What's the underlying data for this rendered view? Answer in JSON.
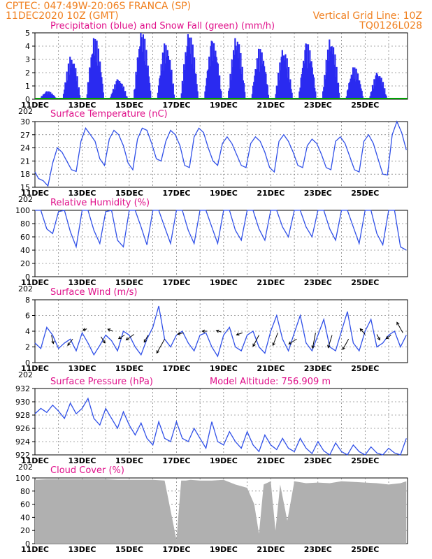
{
  "header": {
    "line1": "CPTEC:   047:49W-20:06S  FRANCA (SP)",
    "line2": "11DEC2020 10Z (GMT)",
    "grid_note": "Vertical Grid Line: 10Z",
    "run_code": "TQ0126L028"
  },
  "colors": {
    "header": "#f08020",
    "title": "#e0108a",
    "precip": "#2a2af0",
    "snow": "#00a000",
    "line": "#3050e8",
    "cloud": "#b0b0b0",
    "grid": "#555555"
  },
  "x_labels": [
    "11DEC",
    "13DEC",
    "15DEC",
    "17DEC",
    "19DEC",
    "21DEC",
    "23DEC",
    "25DEC"
  ],
  "year_fragment": "202",
  "chart_data": [
    {
      "id": "precip",
      "type": "bar",
      "title": "Precipitation (blue) and Snow Fall (green) (mm/h)",
      "ylim": [
        0,
        5
      ],
      "yticks": [
        0,
        1,
        2,
        3,
        4,
        5
      ],
      "day_peaks": [
        0.6,
        3.2,
        4.6,
        1.5,
        5.0,
        4.2,
        4.9,
        4.4,
        4.6,
        3.8,
        3.7,
        4.2,
        4.5,
        2.4,
        2.0
      ],
      "snow": 0
    },
    {
      "id": "temp",
      "type": "line",
      "title": "Surface Temperature (nC)",
      "ylim": [
        15,
        30
      ],
      "yticks": [
        15,
        18,
        21,
        24,
        27,
        30
      ],
      "x": [
        0.0,
        0.15,
        0.35,
        0.55,
        0.75,
        0.95,
        1.15,
        1.35,
        1.55,
        1.75,
        1.95,
        2.15,
        2.35,
        2.55,
        2.75,
        2.95,
        3.15,
        3.35,
        3.55,
        3.75,
        3.95,
        4.15,
        4.35,
        4.55,
        4.75,
        4.95,
        5.15,
        5.35,
        5.55,
        5.75,
        5.95,
        6.15,
        6.35,
        6.55,
        6.75,
        6.95,
        7.15,
        7.35,
        7.55,
        7.75,
        7.95,
        8.15,
        8.35,
        8.55,
        8.75,
        8.95,
        9.15,
        9.35,
        9.55,
        9.75,
        9.95,
        10.15,
        10.35,
        10.55,
        10.75,
        10.95,
        11.15,
        11.35,
        11.55,
        11.75,
        11.95,
        12.15,
        12.35,
        12.55,
        12.75,
        12.95,
        13.15,
        13.35,
        13.55,
        13.75,
        13.95,
        14.15,
        14.35,
        14.55,
        14.75,
        14.95,
        15.15,
        15.35,
        15.55,
        15.75
      ],
      "values": [
        18.5,
        17.0,
        16.5,
        15.3,
        20.5,
        24.0,
        23.0,
        21.0,
        19.0,
        18.6,
        25.5,
        28.5,
        27.0,
        25.5,
        21.5,
        20.0,
        26.0,
        28.0,
        27.0,
        24.5,
        20.5,
        19.0,
        26.0,
        28.5,
        28.0,
        25.0,
        21.5,
        21.0,
        25.5,
        28.0,
        27.0,
        24.5,
        20.0,
        19.5,
        26.5,
        28.5,
        27.5,
        24.0,
        21.0,
        20.0,
        25.0,
        26.5,
        25.0,
        22.5,
        20.0,
        19.5,
        25.0,
        26.5,
        25.5,
        23.0,
        19.5,
        18.5,
        25.5,
        27.0,
        25.5,
        23.0,
        20.0,
        19.5,
        24.5,
        26.0,
        25.0,
        22.5,
        19.5,
        19.0,
        25.5,
        26.5,
        25.0,
        22.0,
        19.0,
        18.5,
        25.5,
        27.0,
        25.0,
        21.5,
        18.0,
        17.8,
        27.0,
        30.0,
        27.5,
        23.5
      ]
    },
    {
      "id": "rh",
      "type": "line",
      "title": "Relative Humidity (%)",
      "ylim": [
        0,
        100
      ],
      "yticks": [
        0,
        20,
        40,
        60,
        80,
        100
      ],
      "x": [
        0.0,
        0.25,
        0.5,
        0.75,
        1.0,
        1.25,
        1.5,
        1.75,
        2.0,
        2.25,
        2.5,
        2.75,
        3.0,
        3.25,
        3.5,
        3.75,
        4.0,
        4.25,
        4.5,
        4.75,
        5.0,
        5.25,
        5.5,
        5.75,
        6.0,
        6.25,
        6.5,
        6.75,
        7.0,
        7.25,
        7.5,
        7.75,
        8.0,
        8.25,
        8.5,
        8.75,
        9.0,
        9.25,
        9.5,
        9.75,
        10.0,
        10.25,
        10.5,
        10.75,
        11.0,
        11.25,
        11.5,
        11.75,
        12.0,
        12.25,
        12.5,
        12.75,
        13.0,
        13.25,
        13.5,
        13.75,
        14.0,
        14.25,
        14.5,
        14.75,
        15.0,
        15.25,
        15.5,
        15.75
      ],
      "values": [
        100,
        100,
        72,
        65,
        98,
        100,
        68,
        45,
        100,
        100,
        70,
        50,
        98,
        100,
        55,
        45,
        100,
        100,
        75,
        48,
        100,
        100,
        75,
        50,
        100,
        100,
        70,
        50,
        100,
        100,
        75,
        50,
        100,
        100,
        70,
        55,
        100,
        100,
        72,
        55,
        100,
        100,
        75,
        60,
        100,
        100,
        75,
        60,
        100,
        100,
        72,
        55,
        100,
        100,
        75,
        50,
        100,
        100,
        65,
        48,
        100,
        100,
        45,
        40
      ]
    },
    {
      "id": "wind",
      "type": "line",
      "title": "Surface Wind (m/s)",
      "ylim": [
        0,
        8
      ],
      "yticks": [
        0,
        2,
        4,
        6,
        8
      ],
      "x": [
        0.0,
        0.25,
        0.5,
        0.75,
        1.0,
        1.25,
        1.5,
        1.75,
        2.0,
        2.25,
        2.5,
        2.75,
        3.0,
        3.25,
        3.5,
        3.75,
        4.0,
        4.25,
        4.5,
        4.75,
        5.0,
        5.25,
        5.5,
        5.75,
        6.0,
        6.25,
        6.5,
        6.75,
        7.0,
        7.25,
        7.5,
        7.75,
        8.0,
        8.25,
        8.5,
        8.75,
        9.0,
        9.25,
        9.5,
        9.75,
        10.0,
        10.25,
        10.5,
        10.75,
        11.0,
        11.25,
        11.5,
        11.75,
        12.0,
        12.25,
        12.5,
        12.75,
        13.0,
        13.25,
        13.5,
        13.75,
        14.0,
        14.25,
        14.5,
        14.75,
        15.0,
        15.25,
        15.5,
        15.75
      ],
      "values": [
        2.5,
        1.8,
        4.5,
        3.5,
        1.8,
        2.5,
        3.0,
        1.5,
        3.8,
        2.5,
        1.0,
        2.2,
        3.5,
        2.8,
        1.5,
        4.0,
        3.5,
        2.0,
        1.0,
        3.0,
        4.5,
        7.2,
        3.0,
        2.0,
        3.5,
        4.0,
        2.5,
        1.5,
        3.5,
        3.8,
        2.0,
        0.8,
        3.5,
        4.5,
        2.0,
        1.5,
        3.5,
        4.0,
        2.0,
        1.2,
        4.0,
        6.0,
        3.0,
        1.5,
        3.8,
        6.0,
        2.5,
        1.5,
        3.5,
        5.5,
        2.0,
        1.5,
        4.0,
        6.5,
        2.5,
        1.5,
        4.0,
        5.5,
        2.0,
        2.5,
        3.5,
        4.0,
        2.0,
        3.5
      ]
    },
    {
      "id": "pressure",
      "type": "line",
      "title": "Surface Pressure (hPa)",
      "model_altitude": "Model Altitude: 756.909  m",
      "ylim": [
        922,
        932
      ],
      "yticks": [
        922,
        924,
        926,
        928,
        930,
        932
      ],
      "x": [
        0.0,
        0.25,
        0.5,
        0.75,
        1.0,
        1.25,
        1.5,
        1.75,
        2.0,
        2.25,
        2.5,
        2.75,
        3.0,
        3.25,
        3.5,
        3.75,
        4.0,
        4.25,
        4.5,
        4.75,
        5.0,
        5.25,
        5.5,
        5.75,
        6.0,
        6.25,
        6.5,
        6.75,
        7.0,
        7.25,
        7.5,
        7.75,
        8.0,
        8.25,
        8.5,
        8.75,
        9.0,
        9.25,
        9.5,
        9.75,
        10.0,
        10.25,
        10.5,
        10.75,
        11.0,
        11.25,
        11.5,
        11.75,
        12.0,
        12.25,
        12.5,
        12.75,
        13.0,
        13.25,
        13.5,
        13.75,
        14.0,
        14.25,
        14.5,
        14.75,
        15.0,
        15.25,
        15.5,
        15.75
      ],
      "values": [
        928.2,
        929.0,
        928.4,
        929.5,
        928.6,
        927.5,
        929.8,
        928.2,
        929.0,
        930.5,
        927.5,
        926.5,
        929.0,
        927.5,
        926.0,
        928.5,
        926.5,
        925.0,
        926.8,
        924.5,
        923.5,
        927.0,
        924.5,
        924.0,
        927.0,
        924.5,
        924.0,
        926.0,
        924.5,
        923.0,
        927.0,
        924.0,
        923.5,
        925.5,
        924.0,
        923.0,
        925.5,
        923.5,
        922.5,
        925.0,
        923.5,
        922.8,
        924.5,
        923.0,
        922.5,
        924.5,
        923.0,
        922.2,
        924.0,
        922.6,
        922.0,
        923.8,
        922.5,
        922.0,
        923.5,
        922.5,
        922.0,
        923.2,
        922.3,
        922.0,
        923.0,
        922.3,
        922.0,
        924.5
      ]
    },
    {
      "id": "cloud",
      "type": "area",
      "title": "Cloud Cover (%)",
      "ylim": [
        0,
        100
      ],
      "yticks": [
        0,
        20,
        40,
        60,
        80,
        100
      ],
      "x": [
        0.0,
        0.5,
        1.0,
        1.5,
        2.0,
        2.5,
        3.0,
        3.5,
        4.0,
        4.5,
        5.0,
        5.5,
        6.0,
        6.2,
        6.4,
        6.6,
        7.0,
        7.5,
        8.0,
        8.5,
        9.0,
        9.3,
        9.5,
        9.7,
        10.0,
        10.2,
        10.4,
        10.7,
        11.0,
        11.5,
        12.0,
        12.5,
        13.0,
        13.5,
        14.0,
        14.5,
        15.0,
        15.5,
        15.75
      ],
      "values": [
        97,
        98,
        98,
        98,
        98,
        98,
        98,
        97,
        97,
        97,
        97,
        96,
        6,
        96,
        96,
        97,
        96,
        96,
        97,
        90,
        85,
        60,
        15,
        90,
        95,
        20,
        90,
        35,
        95,
        92,
        93,
        92,
        95,
        94,
        93,
        92,
        90,
        92,
        95
      ]
    }
  ]
}
